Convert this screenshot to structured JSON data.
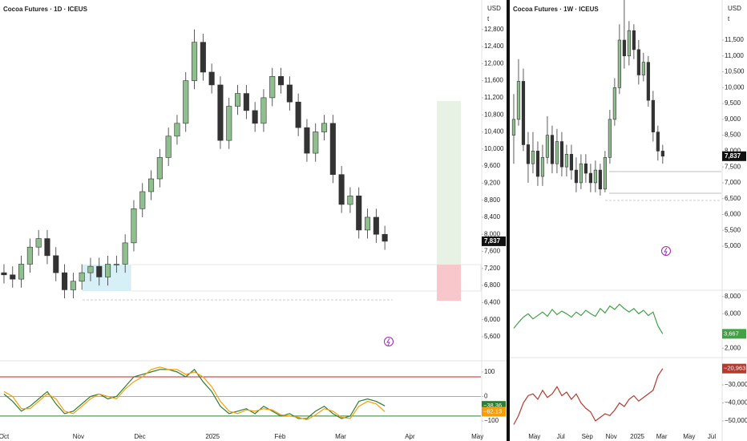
{
  "chart_data": [
    {
      "type": "candlestick",
      "title": "Cocoa Futures · 1D · ICEUS",
      "currency": "USD",
      "unit": "t",
      "xlim": [
        -0.46,
        55.1
      ],
      "xticks": [
        {
          "value": 0,
          "label": "Oct"
        },
        {
          "value": 8.6,
          "label": "Nov"
        },
        {
          "value": 15.7,
          "label": "Dec"
        },
        {
          "value": 24.1,
          "label": "2025"
        },
        {
          "value": 31.9,
          "label": "Feb"
        },
        {
          "value": 38.9,
          "label": "Mar"
        },
        {
          "value": 46.9,
          "label": "Apr"
        },
        {
          "value": 54.7,
          "label": "May"
        }
      ],
      "ylim": [
        5130,
        13490
      ],
      "yticks": [
        {
          "value": 5600,
          "label": "5,600"
        },
        {
          "value": 6000,
          "label": "6,000"
        },
        {
          "value": 6400,
          "label": "6,400"
        },
        {
          "value": 6800,
          "label": "6,800"
        },
        {
          "value": 7200,
          "label": "7,200"
        },
        {
          "value": 7600,
          "label": "7,600"
        },
        {
          "value": 8000,
          "label": "8,000"
        },
        {
          "value": 8400,
          "label": "8,400"
        },
        {
          "value": 8800,
          "label": "8,800"
        },
        {
          "value": 9200,
          "label": "9,200"
        },
        {
          "value": 9600,
          "label": "9,600"
        },
        {
          "value": 10000,
          "label": "10,000"
        },
        {
          "value": 10400,
          "label": "10,400"
        },
        {
          "value": 10800,
          "label": "10,800"
        },
        {
          "value": 11200,
          "label": "11,200"
        },
        {
          "value": 11600,
          "label": "11,600"
        },
        {
          "value": 12000,
          "label": "12,000"
        },
        {
          "value": 12400,
          "label": "12,400"
        },
        {
          "value": 12800,
          "label": "12,800"
        }
      ],
      "up_color": "#8fbf8f",
      "down_color": "#333333",
      "open": [
        7100,
        7050,
        6950,
        7300,
        7700,
        7900,
        7500,
        7100,
        6700,
        6900,
        7100,
        7250,
        7000,
        7300,
        7300,
        7800,
        8600,
        9000,
        9300,
        9800,
        10300,
        10600,
        11600,
        12500,
        11800,
        11500,
        10200,
        11000,
        11300,
        10900,
        10600,
        11200,
        11700,
        11500,
        11100,
        10500,
        9900,
        10400,
        10600,
        9400,
        8700,
        8900,
        8100,
        8400,
        8000
      ],
      "high": [
        7300,
        7250,
        7500,
        7900,
        8100,
        8100,
        7700,
        7300,
        7100,
        7300,
        7450,
        7450,
        7500,
        7500,
        8000,
        8800,
        9200,
        9500,
        10000,
        10500,
        10800,
        11800,
        12800,
        12700,
        12000,
        11700,
        11200,
        11500,
        11500,
        11100,
        11400,
        11900,
        11900,
        11700,
        11300,
        10700,
        10600,
        10800,
        10800,
        9600,
        9100,
        9100,
        8600,
        8600,
        8200
      ],
      "low": [
        6850,
        6750,
        6750,
        7100,
        7500,
        7300,
        6900,
        6500,
        6500,
        6700,
        6900,
        6800,
        6800,
        7100,
        7100,
        7600,
        8400,
        8800,
        9100,
        9600,
        10100,
        10400,
        11400,
        11600,
        11300,
        10000,
        10000,
        10800,
        10700,
        10400,
        10400,
        11000,
        11300,
        10900,
        10300,
        9700,
        9700,
        10200,
        9200,
        8500,
        8500,
        7900,
        7900,
        7800,
        7637
      ],
      "close": [
        7050,
        6950,
        7300,
        7700,
        7900,
        7500,
        7100,
        6700,
        6900,
        7100,
        7250,
        7000,
        7300,
        7300,
        7800,
        8600,
        9000,
        9300,
        9800,
        10300,
        10600,
        11600,
        12500,
        11800,
        11500,
        10200,
        11000,
        11300,
        10900,
        10600,
        11200,
        11700,
        11500,
        11100,
        10500,
        9900,
        10400,
        10600,
        9400,
        8700,
        8900,
        8100,
        8400,
        8000,
        7837
      ],
      "last_price": {
        "value": 7837,
        "label": "7,837"
      },
      "panes": [
        {
          "ylim": [
            -149,
            129
          ],
          "yticks": [
            {
              "value": -100,
              "label": "−100"
            },
            0,
            100
          ],
          "levels": [
            {
              "value": 80,
              "color": "#c62828"
            },
            {
              "value": 0,
              "color": "#aaaaaa"
            },
            {
              "value": -80,
              "color": "#2e7d32"
            }
          ],
          "series": [
            {
              "color": "#2e7d32",
              "values": [
                10,
                -20,
                -60,
                -40,
                -10,
                20,
                -30,
                -70,
                -60,
                -30,
                0,
                10,
                -10,
                0,
                40,
                80,
                90,
                100,
                110,
                110,
                100,
                80,
                110,
                60,
                20,
                -40,
                -70,
                -60,
                -50,
                -70,
                -40,
                -60,
                -80,
                -70,
                -90,
                -90,
                -60,
                -40,
                -70,
                -90,
                -80,
                -20,
                -10,
                -20,
                -38.36
              ],
              "last_label": "−38.36"
            },
            {
              "color": "#f59e0b",
              "values": [
                20,
                0,
                -50,
                -50,
                -20,
                10,
                -10,
                -60,
                -70,
                -40,
                -10,
                10,
                0,
                -10,
                30,
                60,
                80,
                110,
                120,
                110,
                110,
                90,
                100,
                80,
                40,
                -20,
                -60,
                -70,
                -55,
                -60,
                -50,
                -55,
                -75,
                -80,
                -85,
                -95,
                -75,
                -50,
                -60,
                -85,
                -90,
                -40,
                -20,
                -30,
                -62.13
              ],
              "last_label": "−62.13"
            }
          ]
        }
      ]
    },
    {
      "type": "candlestick",
      "title": "Cocoa Futures · 1W · ICEUS",
      "currency": "USD",
      "unit": "t",
      "xlim": [
        -0.83,
        43.2
      ],
      "xticks": [
        {
          "value": 4.3,
          "label": "May"
        },
        {
          "value": 9.8,
          "label": "Jul"
        },
        {
          "value": 15.3,
          "label": "Sep"
        },
        {
          "value": 20.3,
          "label": "Nov"
        },
        {
          "value": 25.7,
          "label": "2025"
        },
        {
          "value": 30.8,
          "label": "Mar"
        },
        {
          "value": 36.5,
          "label": "May"
        },
        {
          "value": 41.2,
          "label": "Jul"
        }
      ],
      "ylim": [
        3533,
        12765
      ],
      "yticks": [
        {
          "value": 5000,
          "label": "5,000"
        },
        {
          "value": 5500,
          "label": "5,500"
        },
        {
          "value": 6000,
          "label": "6,000"
        },
        {
          "value": 6500,
          "label": "6,500"
        },
        {
          "value": 7000,
          "label": "7,000"
        },
        {
          "value": 7500,
          "label": "7,500"
        },
        {
          "value": 8000,
          "label": "8,000"
        },
        {
          "value": 8500,
          "label": "8,500"
        },
        {
          "value": 9000,
          "label": "9,000"
        },
        {
          "value": 9500,
          "label": "9,500"
        },
        {
          "value": 10000,
          "label": "10,000"
        },
        {
          "value": 10500,
          "label": "10,500"
        },
        {
          "value": 11000,
          "label": "11,000"
        },
        {
          "value": 11500,
          "label": "11,500"
        }
      ],
      "up_color": "#8fbf8f",
      "down_color": "#333333",
      "open": [
        8500,
        9000,
        10200,
        8200,
        7600,
        8000,
        7200,
        7800,
        8500,
        7600,
        8300,
        7500,
        7900,
        7400,
        7000,
        7600,
        7300,
        7000,
        7400,
        6800,
        7800,
        9000,
        10000,
        11500,
        11000,
        11800,
        11200,
        10400,
        10800,
        9600,
        8600,
        8000
      ],
      "high": [
        9800,
        10900,
        10600,
        8600,
        8600,
        8300,
        8200,
        9100,
        8800,
        8700,
        8600,
        8200,
        8200,
        7800,
        7900,
        7900,
        7600,
        7700,
        7600,
        8000,
        9300,
        10300,
        12000,
        12800,
        12100,
        12000,
        11500,
        11100,
        11000,
        9900,
        8800,
        8200
      ],
      "low": [
        7600,
        8800,
        8000,
        7000,
        7300,
        6900,
        6900,
        7600,
        7300,
        7300,
        7200,
        7200,
        7100,
        6700,
        6800,
        7000,
        6700,
        6700,
        6600,
        6700,
        7600,
        8800,
        9800,
        10600,
        10700,
        10900,
        10100,
        10200,
        9400,
        8300,
        7700,
        7600
      ],
      "close": [
        9000,
        10200,
        8200,
        7600,
        8000,
        7200,
        7800,
        8500,
        7600,
        8300,
        7500,
        7900,
        7400,
        7000,
        7600,
        7300,
        7000,
        7400,
        6800,
        7800,
        9000,
        10000,
        11500,
        11000,
        11800,
        11200,
        10400,
        10800,
        9600,
        8600,
        8000,
        7837
      ],
      "last_price": {
        "value": 7837,
        "label": "7,837"
      },
      "panes": [
        {
          "ylim": [
            1000,
            8727
          ],
          "yticks": [
            {
              "value": 2000,
              "label": "2,000"
            },
            {
              "value": 6000,
              "label": "6,000"
            },
            {
              "value": 8000,
              "label": "8,000"
            }
          ],
          "series": [
            {
              "color": "#43a047",
              "values": [
                4300,
                5000,
                5600,
                6000,
                5400,
                5800,
                6200,
                5700,
                6500,
                5900,
                6300,
                6000,
                5600,
                6200,
                5800,
                6400,
                6000,
                5700,
                6600,
                6100,
                6900,
                6500,
                7100,
                6600,
                6200,
                6600,
                6000,
                6400,
                5800,
                6200,
                4600,
                3667
              ],
              "last_label": "3,667"
            }
          ]
        },
        {
          "ylim": [
            -56667,
            -15333
          ],
          "yticks": [
            {
              "value": -50000,
              "label": "−50,000"
            },
            {
              "value": -40000,
              "label": "−40,000"
            },
            {
              "value": -30000,
              "label": "−30,000"
            }
          ],
          "series": [
            {
              "color": "#b23a2e",
              "values": [
                -52000,
                -47000,
                -40000,
                -36000,
                -35000,
                -38000,
                -33000,
                -37000,
                -35000,
                -31000,
                -36000,
                -34000,
                -38000,
                -35000,
                -40000,
                -43000,
                -45000,
                -50000,
                -48000,
                -46000,
                -47000,
                -44000,
                -40000,
                -42000,
                -38000,
                -36000,
                -39000,
                -37000,
                -35000,
                -33000,
                -25000,
                -20963
              ],
              "last_label": "−20,963"
            }
          ]
        }
      ]
    }
  ]
}
